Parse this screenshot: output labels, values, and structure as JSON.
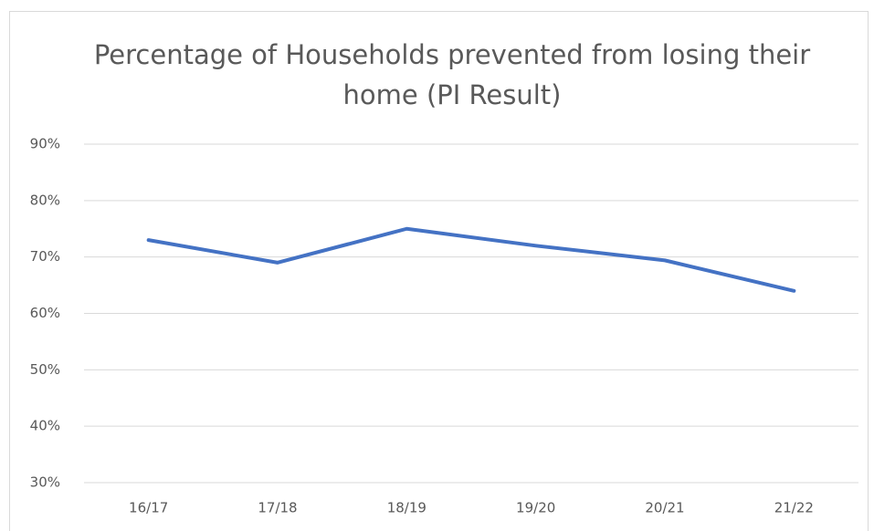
{
  "chart_data": {
    "type": "line",
    "title": "Percentage of Households prevented from losing their home (PI Result)",
    "categories": [
      "16/17",
      "17/18",
      "18/19",
      "19/20",
      "20/21",
      "21/22"
    ],
    "series": [
      {
        "name": "PI Result",
        "color": "#4472c4",
        "values": [
          73,
          69,
          75,
          72,
          69.4,
          64
        ]
      }
    ],
    "ylim": [
      30,
      90
    ],
    "yticks": [
      {
        "value": 30,
        "label": "30%"
      },
      {
        "value": 40,
        "label": "40%"
      },
      {
        "value": 50,
        "label": "50%"
      },
      {
        "value": 60,
        "label": "60%"
      },
      {
        "value": 70,
        "label": "70%"
      },
      {
        "value": 80,
        "label": "80%"
      },
      {
        "value": 90,
        "label": "90%"
      }
    ],
    "grid": true
  }
}
